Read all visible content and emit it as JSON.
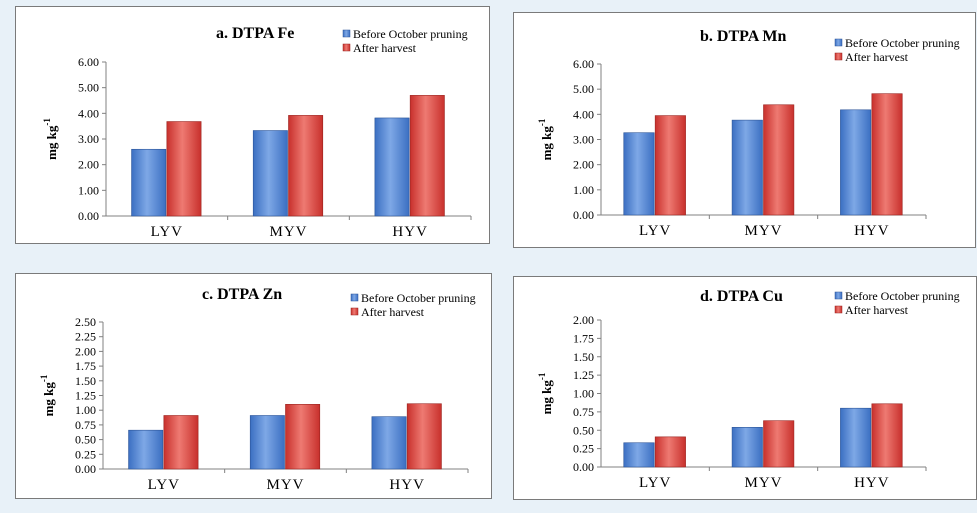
{
  "colors": {
    "before": "#3b6fc2",
    "before_light": "#7ea8e6",
    "after": "#c8302c",
    "after_light": "#ee7a72",
    "panel_border": "#7a7a7a",
    "background": "#e8f1f8"
  },
  "chart_data": [
    {
      "type": "bar",
      "title": "a. DTPA Fe",
      "ylabel_main": "mg kg",
      "ylabel_sup": "-1",
      "categories": [
        "LYV",
        "MYV",
        "HYV"
      ],
      "series": [
        {
          "name": "Before October pruning",
          "values": [
            2.6,
            3.33,
            3.82
          ]
        },
        {
          "name": "After harvest",
          "values": [
            3.68,
            3.92,
            4.7
          ]
        }
      ],
      "ylim": [
        0,
        6
      ],
      "yticks": [
        "0.00",
        "1.00",
        "2.00",
        "3.00",
        "4.00",
        "5.00",
        "6.00"
      ],
      "legend": "top-right",
      "grid": false
    },
    {
      "type": "bar",
      "title": "b. DTPA Mn",
      "ylabel_main": "mg kg",
      "ylabel_sup": "-1",
      "categories": [
        "LYV",
        "MYV",
        "HYV"
      ],
      "series": [
        {
          "name": "Before October pruning",
          "values": [
            3.27,
            3.77,
            4.18
          ]
        },
        {
          "name": "After harvest",
          "values": [
            3.95,
            4.38,
            4.82
          ]
        }
      ],
      "ylim": [
        0,
        6
      ],
      "yticks": [
        "0.00",
        "1.00",
        "2.00",
        "3.00",
        "4.00",
        "5.00",
        "6.00"
      ],
      "legend": "top-right",
      "grid": false
    },
    {
      "type": "bar",
      "title": "c. DTPA Zn",
      "ylabel_main": "mg kg",
      "ylabel_sup": "-1",
      "categories": [
        "LYV",
        "MYV",
        "HYV"
      ],
      "series": [
        {
          "name": "Before October pruning",
          "values": [
            0.66,
            0.91,
            0.89
          ]
        },
        {
          "name": "After harvest",
          "values": [
            0.91,
            1.1,
            1.11
          ]
        }
      ],
      "ylim": [
        0,
        2.5
      ],
      "yticks": [
        "0.00",
        "0.25",
        "0.50",
        "0.75",
        "1.00",
        "1.25",
        "1.50",
        "1.75",
        "2.00",
        "2.25",
        "2.50"
      ],
      "legend": "top-right",
      "grid": false
    },
    {
      "type": "bar",
      "title": "d. DTPA Cu",
      "ylabel_main": "mg kg",
      "ylabel_sup": "-1",
      "categories": [
        "LYV",
        "MYV",
        "HYV"
      ],
      "series": [
        {
          "name": "Before October pruning",
          "values": [
            0.33,
            0.54,
            0.8
          ]
        },
        {
          "name": "After harvest",
          "values": [
            0.41,
            0.63,
            0.86
          ]
        }
      ],
      "ylim": [
        0,
        2
      ],
      "yticks": [
        "0.00",
        "0.25",
        "0.50",
        "0.75",
        "1.00",
        "1.25",
        "1.50",
        "1.75",
        "2.00"
      ],
      "legend": "top-right",
      "grid": false
    }
  ]
}
